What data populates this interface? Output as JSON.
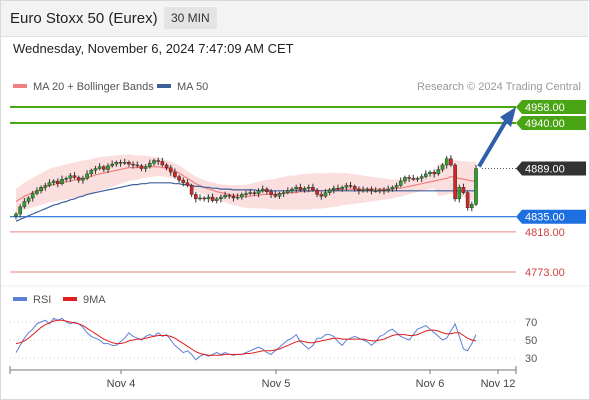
{
  "header": {
    "title": "Euro Stoxx 50 (Eurex)",
    "timeframe": "30 MIN",
    "datetime": "Wednesday, November 6, 2024 7:47:09 AM CET"
  },
  "chart_data": [
    {
      "type": "candlestick",
      "legend": [
        {
          "label": "MA 20 + Bollinger Bands",
          "color": "#f08080"
        },
        {
          "label": "MA 50",
          "color": "#3d5f9a"
        }
      ],
      "credit": "Research © 2024 Trading Central",
      "x_ticks": [
        "Nov 4",
        "Nov 5",
        "Nov 6",
        "Nov 12"
      ],
      "y_range": [
        4760,
        4965
      ],
      "price_levels": [
        {
          "label": "4958.00",
          "value": 4958,
          "style": "resistance",
          "color": "#4aa514"
        },
        {
          "label": "4940.00",
          "value": 4940,
          "style": "resistance",
          "color": "#4aa514"
        },
        {
          "label": "4889.00",
          "value": 4889,
          "style": "current",
          "color": "#333333"
        },
        {
          "label": "4835.00",
          "value": 4835,
          "style": "pivot",
          "color": "#1e6fe0"
        },
        {
          "label": "4818.00",
          "value": 4818,
          "style": "support",
          "color": "#e06666"
        },
        {
          "label": "4773.00",
          "value": 4773,
          "style": "support",
          "color": "#e06666"
        }
      ],
      "series": {
        "close": [
          4838,
          4846,
          4852,
          4856,
          4861,
          4864,
          4868,
          4870,
          4873,
          4875,
          4872,
          4877,
          4878,
          4881,
          4879,
          4876,
          4878,
          4883,
          4887,
          4889,
          4891,
          4888,
          4892,
          4894,
          4896,
          4895,
          4896,
          4894,
          4893,
          4892,
          4889,
          4891,
          4895,
          4898,
          4897,
          4893,
          4890,
          4885,
          4880,
          4876,
          4873,
          4870,
          4860,
          4855,
          4856,
          4855,
          4857,
          4853,
          4855,
          4857,
          4859,
          4858,
          4856,
          4857,
          4860,
          4861,
          4862,
          4861,
          4864,
          4866,
          4863,
          4860,
          4858,
          4861,
          4862,
          4864,
          4866,
          4868,
          4865,
          4867,
          4868,
          4865,
          4860,
          4858,
          4862,
          4865,
          4867,
          4866,
          4868,
          4870,
          4869,
          4866,
          4864,
          4865,
          4866,
          4864,
          4864,
          4865,
          4864,
          4866,
          4868,
          4870,
          4875,
          4879,
          4878,
          4877,
          4878,
          4880,
          4883,
          4885,
          4883,
          4888,
          4893,
          4900,
          4893,
          4855,
          4868,
          4862,
          4845,
          4849,
          4889
        ],
        "ma20": [
          4852,
          4855,
          4858,
          4860,
          4862,
          4864,
          4866,
          4868,
          4870,
          4871,
          4872,
          4873,
          4874,
          4875,
          4876,
          4877,
          4878,
          4879,
          4880,
          4882,
          4883,
          4884,
          4885,
          4886,
          4887,
          4888,
          4889,
          4890,
          4890,
          4890,
          4891,
          4891,
          4891,
          4891,
          4891,
          4890,
          4889,
          4888,
          4886,
          4884,
          4881,
          4878,
          4875,
          4872,
          4870,
          4868,
          4866,
          4865,
          4863,
          4862,
          4861,
          4860,
          4859,
          4859,
          4858,
          4858,
          4858,
          4859,
          4859,
          4860,
          4860,
          4860,
          4860,
          4861,
          4861,
          4862,
          4862,
          4862,
          4863,
          4863,
          4863,
          4864,
          4864,
          4864,
          4864,
          4865,
          4865,
          4865,
          4866,
          4866,
          4866,
          4866,
          4866,
          4866,
          4866,
          4866,
          4866,
          4866,
          4866,
          4866,
          4866,
          4867,
          4867,
          4868,
          4869,
          4870,
          4871,
          4872,
          4873,
          4874,
          4875,
          4876,
          4877,
          4878,
          4880,
          4879,
          4878,
          4877,
          4876,
          4875,
          4875
        ],
        "ma50": [
          4830,
          4832,
          4834,
          4836,
          4838,
          4840,
          4842,
          4844,
          4846,
          4848,
          4849,
          4851,
          4852,
          4854,
          4855,
          4857,
          4858,
          4860,
          4861,
          4862,
          4863,
          4864,
          4865,
          4866,
          4867,
          4868,
          4869,
          4870,
          4871,
          4871,
          4872,
          4872,
          4873,
          4873,
          4873,
          4873,
          4873,
          4873,
          4872,
          4872,
          4871,
          4871,
          4870,
          4869,
          4869,
          4868,
          4868,
          4867,
          4867,
          4866,
          4866,
          4866,
          4865,
          4865,
          4865,
          4865,
          4865,
          4865,
          4864,
          4864,
          4864,
          4864,
          4864,
          4864,
          4864,
          4864,
          4864,
          4864,
          4864,
          4864,
          4864,
          4864,
          4864,
          4864,
          4864,
          4864,
          4864,
          4864,
          4864,
          4864,
          4864,
          4864,
          4864,
          4864,
          4864,
          4864,
          4864,
          4864,
          4864,
          4864,
          4864,
          4864,
          4864,
          4864,
          4864,
          4864,
          4864,
          4864,
          4864,
          4864,
          4864,
          4864,
          4864,
          4864,
          4864,
          4864,
          4864,
          4864,
          4864,
          4864,
          4864
        ]
      },
      "projection": {
        "from": 4889,
        "to": 4958
      }
    },
    {
      "type": "line",
      "legend": [
        {
          "label": "RSI",
          "color": "#5b7fd6"
        },
        {
          "label": "9MA",
          "color": "#e11d1d"
        }
      ],
      "y_ticks": [
        {
          "label": "70",
          "value": 70
        },
        {
          "label": "50",
          "value": 50
        },
        {
          "label": "30",
          "value": 30
        }
      ],
      "y_range": [
        20,
        85
      ],
      "series": {
        "rsi": [
          36,
          44,
          52,
          58,
          62,
          68,
          70,
          72,
          68,
          74,
          72,
          74,
          70,
          68,
          70,
          68,
          64,
          58,
          54,
          52,
          50,
          46,
          46,
          44,
          44,
          48,
          52,
          58,
          54,
          52,
          50,
          54,
          56,
          54,
          58,
          54,
          56,
          50,
          44,
          40,
          36,
          38,
          34,
          28,
          32,
          34,
          32,
          34,
          36,
          34,
          36,
          34,
          33,
          34,
          34,
          36,
          38,
          40,
          42,
          40,
          36,
          34,
          38,
          42,
          46,
          50,
          52,
          56,
          48,
          44,
          40,
          44,
          52,
          52,
          56,
          56,
          54,
          48,
          44,
          50,
          52,
          54,
          52,
          50,
          48,
          44,
          48,
          54,
          56,
          60,
          62,
          58,
          54,
          52,
          50,
          56,
          62,
          64,
          66,
          62,
          58,
          54,
          50,
          52,
          60,
          68,
          54,
          40,
          38,
          46,
          56
        ],
        "ma9": [
          46,
          47,
          49,
          52,
          56,
          60,
          64,
          67,
          69,
          71,
          72,
          72,
          71,
          70,
          69,
          68,
          66,
          63,
          60,
          57,
          54,
          51,
          49,
          47,
          46,
          46,
          47,
          49,
          50,
          51,
          51,
          52,
          53,
          54,
          55,
          55,
          55,
          54,
          52,
          49,
          46,
          43,
          40,
          37,
          35,
          34,
          33,
          33,
          33,
          33,
          34,
          34,
          34,
          34,
          34,
          35,
          35,
          36,
          37,
          38,
          38,
          38,
          39,
          40,
          42,
          44,
          46,
          48,
          49,
          48,
          47,
          47,
          48,
          49,
          50,
          51,
          52,
          52,
          51,
          51,
          51,
          51,
          51,
          51,
          50,
          49,
          49,
          50,
          51,
          53,
          55,
          56,
          56,
          56,
          55,
          55,
          56,
          58,
          60,
          61,
          61,
          60,
          58,
          57,
          57,
          58,
          58,
          55,
          52,
          50,
          49
        ]
      }
    }
  ]
}
